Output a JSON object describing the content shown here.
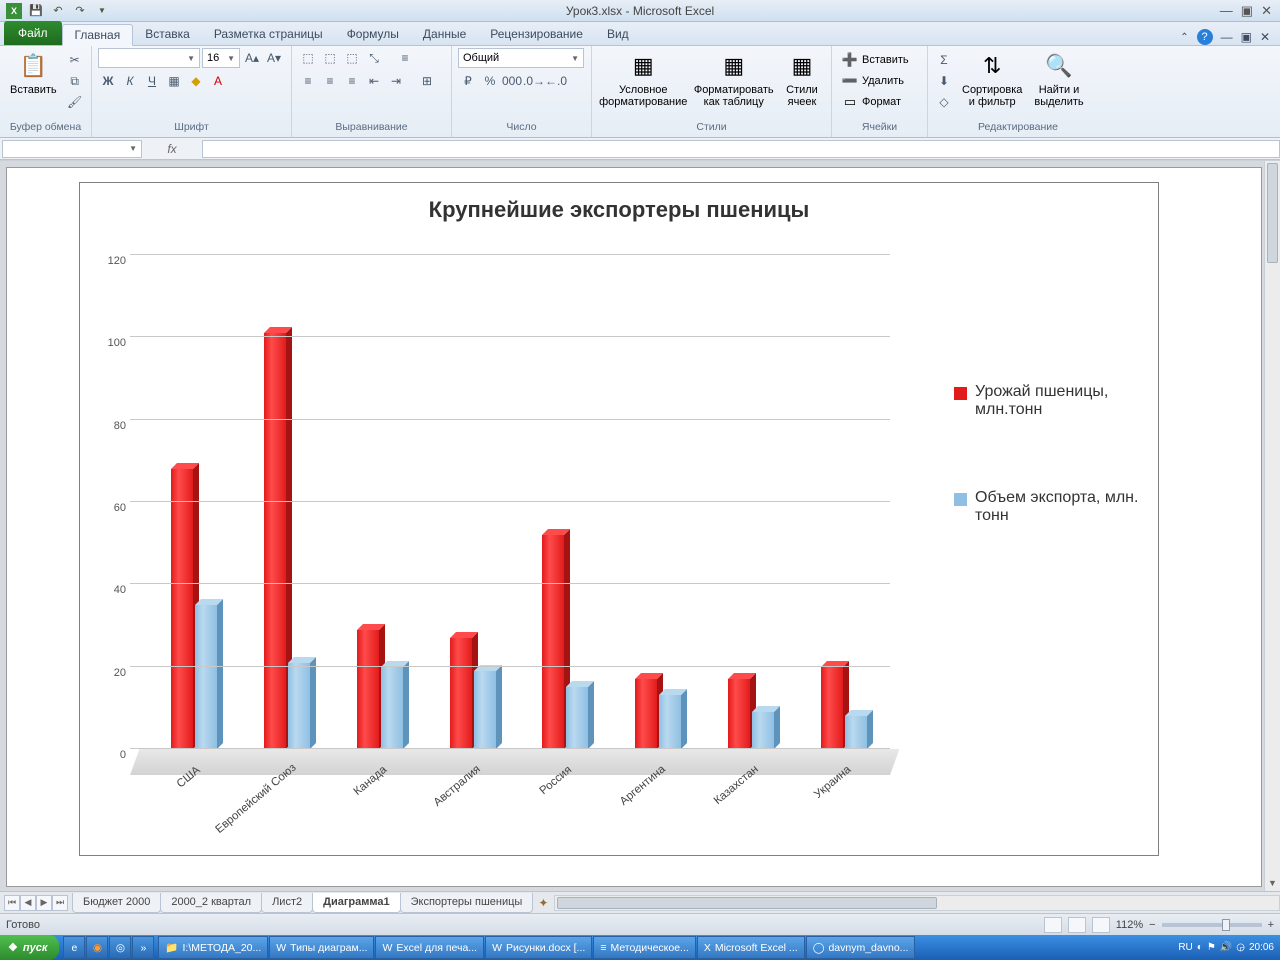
{
  "app_icon": "X",
  "window_title": "Урок3.xlsx - Microsoft Excel",
  "qat": [
    "save",
    "undo",
    "redo",
    "more"
  ],
  "win_controls": {
    "min": "—",
    "mid": "▣",
    "close": "✕"
  },
  "tabs": {
    "file": "Файл",
    "items": [
      "Главная",
      "Вставка",
      "Разметка страницы",
      "Формулы",
      "Данные",
      "Рецензирование",
      "Вид"
    ],
    "active": 0
  },
  "ribbon": {
    "clipboard": {
      "paste": "Вставить",
      "label": "Буфер обмена"
    },
    "font": {
      "label": "Шрифт",
      "size": "16"
    },
    "alignment": {
      "label": "Выравнивание"
    },
    "number": {
      "label": "Число",
      "format": "Общий"
    },
    "styles": {
      "label": "Стили",
      "cond": "Условное\nформатирование",
      "table": "Форматировать\nкак таблицу",
      "cell": "Стили\nячеек"
    },
    "cells": {
      "label": "Ячейки",
      "insert": "Вставить",
      "delete": "Удалить",
      "format": "Формат"
    },
    "editing": {
      "label": "Редактирование",
      "sort": "Сортировка\nи фильтр",
      "find": "Найти и\nвыделить"
    }
  },
  "formula_bar": {
    "name": "",
    "fx": "fx"
  },
  "sheet_tabs": {
    "items": [
      "Бюджет 2000",
      "2000_2 квартал",
      "Лист2",
      "Диаграмма1",
      "Экспортеры пшеницы"
    ],
    "active": 3
  },
  "status": {
    "left": "Готово",
    "zoom": "112%"
  },
  "taskbar": {
    "start": "пуск",
    "items": [
      {
        "icon": "📁",
        "label": "I:\\МЕТОДА_20..."
      },
      {
        "icon": "W",
        "label": "Типы диаграм..."
      },
      {
        "icon": "W",
        "label": "Excel для печа..."
      },
      {
        "icon": "W",
        "label": "Рисунки.docx [..."
      },
      {
        "icon": "≡",
        "label": "Методическое..."
      },
      {
        "icon": "X",
        "label": "Microsoft Excel ..."
      },
      {
        "icon": "◯",
        "label": "davnym_davno..."
      }
    ],
    "lang": "RU",
    "clock": "20:06"
  },
  "chart": {
    "title": "Крупнейшие экспортеры пшеницы",
    "categories": [
      "США",
      "Европейский Союз",
      "Канада",
      "Австралия",
      "Россия",
      "Аргентина",
      "Казахстан",
      "Украина"
    ],
    "series": [
      {
        "name": "Урожай пшеницы, млн.тонн",
        "color": "#e21b1b",
        "dark": "#a51313",
        "light": "#ff4b4b",
        "values": [
          68,
          101,
          29,
          27,
          52,
          17,
          17,
          20
        ]
      },
      {
        "name": "Объем экспорта, млн. тонн",
        "color": "#8fbfe3",
        "dark": "#5e93bb",
        "light": "#b9d9ef",
        "values": [
          35,
          21,
          20,
          19,
          15,
          13,
          9,
          8
        ]
      }
    ],
    "ymax": 120,
    "ystep": 20,
    "plot_bg": "#ffffff",
    "grid_color": "#c8c8c8"
  }
}
